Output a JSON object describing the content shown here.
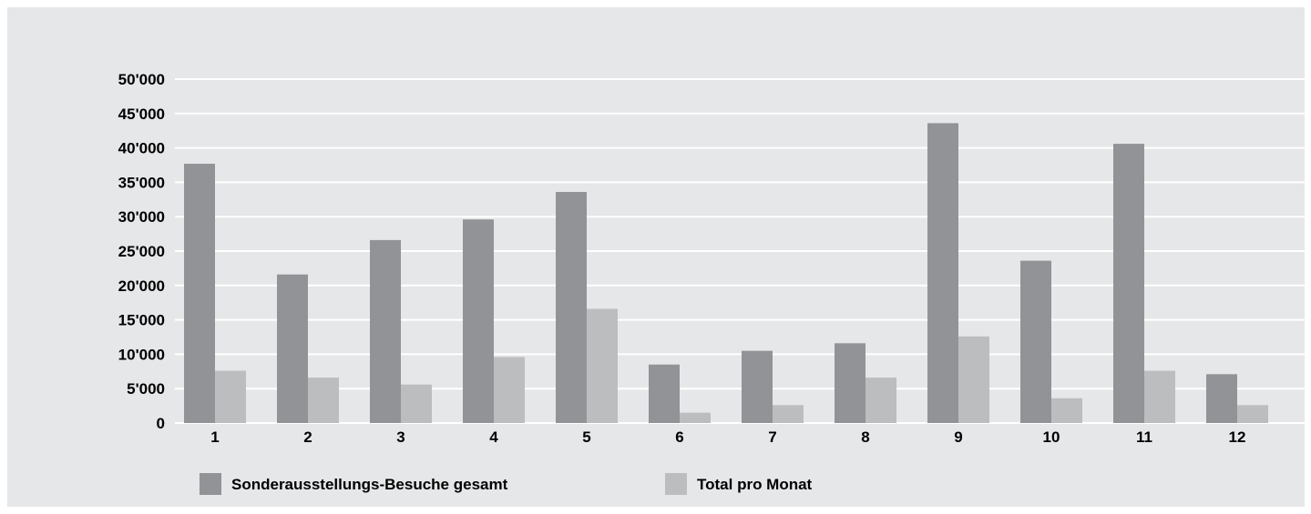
{
  "chart_data": {
    "type": "bar",
    "categories": [
      "1",
      "2",
      "3",
      "4",
      "5",
      "6",
      "7",
      "8",
      "9",
      "10",
      "11",
      "12"
    ],
    "series": [
      {
        "name": "Sonderausstellungs-Besuche gesamt",
        "color": "#929396",
        "values": [
          37700,
          21600,
          26600,
          29600,
          33600,
          8500,
          10500,
          11600,
          43600,
          23600,
          40600,
          7100
        ]
      },
      {
        "name": "Total pro Monat",
        "color": "#bcbdbf",
        "values": [
          7600,
          6600,
          5600,
          9600,
          16600,
          1500,
          2600,
          6600,
          12600,
          3600,
          7600,
          2600
        ]
      }
    ],
    "ylim": [
      0,
      50000
    ],
    "yticks": [
      0,
      5000,
      10000,
      15000,
      20000,
      25000,
      30000,
      35000,
      40000,
      45000,
      50000
    ],
    "ytick_labels": [
      "0",
      "5'000",
      "10'000",
      "15'000",
      "20'000",
      "25'000",
      "30'000",
      "35'000",
      "40'000",
      "45'000",
      "50'000"
    ],
    "grid": true,
    "legend_position": "bottom-left",
    "colors": {
      "background": "#e6e7e9",
      "gridline": "#ffffff",
      "axis": "#ffffff"
    }
  }
}
